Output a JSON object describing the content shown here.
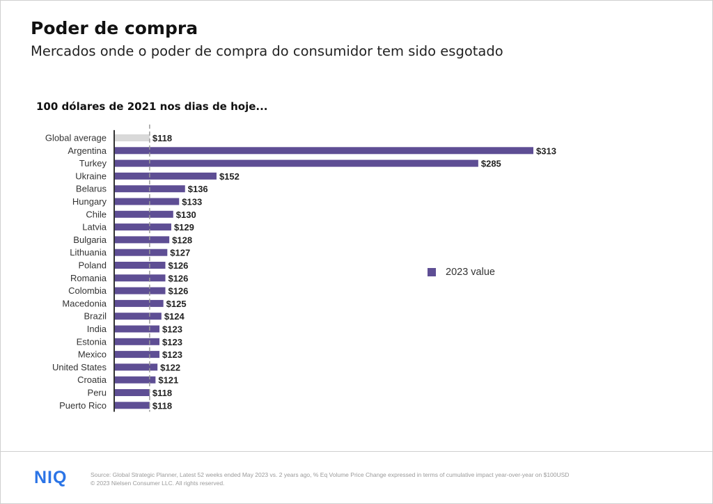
{
  "header": {
    "title": "Poder de compra",
    "subtitle": "Mercados onde o poder de compra do consumidor tem sido esgotado"
  },
  "chart_heading": "100 dólares de 2021 nos dias de hoje...",
  "legend": {
    "label": "2023 value",
    "color": "#5e4e94"
  },
  "footer": {
    "logo": "NIQ",
    "source_line1": "Source: Global Strategic Planner, Latest 52 weeks ended May 2023 vs. 2 years ago, % Eq Volume Price Change  expressed in terms of cumulative  impact year-over-year  on $100USD",
    "source_line2": "© 2023 Nielsen Consumer LLC. All rights reserved."
  },
  "colors": {
    "bar": "#5e4e94",
    "global_average_bar": "#d9d9d9",
    "reference_line": "#9a9a9a"
  },
  "chart_data": {
    "type": "bar",
    "orientation": "horizontal",
    "title": "100 dólares de 2021 nos dias de hoje...",
    "xlabel": "",
    "ylabel": "",
    "xlim": [
      100,
      313
    ],
    "grid": false,
    "legend_position": "right",
    "reference_line": 118,
    "categories": [
      "Global average",
      "Argentina",
      "Turkey",
      "Ukraine",
      "Belarus",
      "Hungary",
      "Chile",
      "Latvia",
      "Bulgaria",
      "Lithuania",
      "Poland",
      "Romania",
      "Colombia",
      "Macedonia",
      "Brazil",
      "India",
      "Estonia",
      "Mexico",
      "United States",
      "Croatia",
      "Peru",
      "Puerto Rico"
    ],
    "series": [
      {
        "name": "2023 value",
        "values": [
          118,
          313,
          285,
          152,
          136,
          133,
          130,
          129,
          128,
          127,
          126,
          126,
          126,
          125,
          124,
          123,
          123,
          123,
          122,
          121,
          118,
          118
        ],
        "labels": [
          "$118",
          "$313",
          "$285",
          "$152",
          "$136",
          "$133",
          "$130",
          "$129",
          "$128",
          "$127",
          "$126",
          "$126",
          "$126",
          "$125",
          "$124",
          "$123",
          "$123",
          "$123",
          "$122",
          "$121",
          "$118",
          "$118"
        ]
      }
    ],
    "highlight_category": "Global average"
  }
}
